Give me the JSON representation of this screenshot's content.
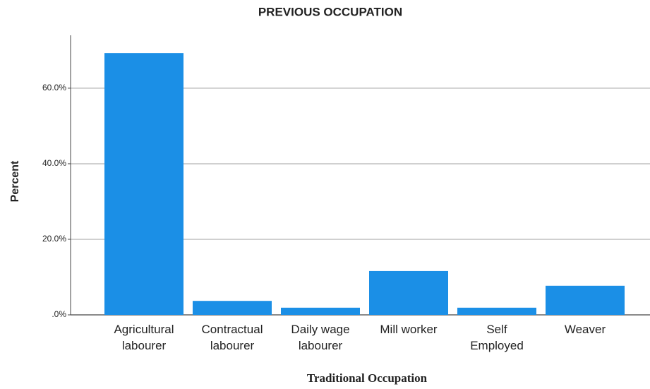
{
  "chart_data": {
    "type": "bar",
    "title": "PREVIOUS OCCUPATION",
    "x_label": "Traditional Occupation",
    "y_label": "Percent",
    "categories": [
      "Agricultural\nlabourer",
      "Contractual\nlabourer",
      "Daily wage\nlabourer",
      "Mill worker",
      "Self\nEmployed",
      "Weaver"
    ],
    "values": [
      69.3,
      3.7,
      1.9,
      11.6,
      1.9,
      7.7
    ],
    "color": "#1b8fe6",
    "ylim": [
      0,
      74
    ],
    "yticks": [
      {
        "value": 0,
        "label": ".0%"
      },
      {
        "value": 20,
        "label": "20.0%"
      },
      {
        "value": 40,
        "label": "40.0%"
      },
      {
        "value": 60,
        "label": "60.0%"
      }
    ],
    "grid": true
  }
}
